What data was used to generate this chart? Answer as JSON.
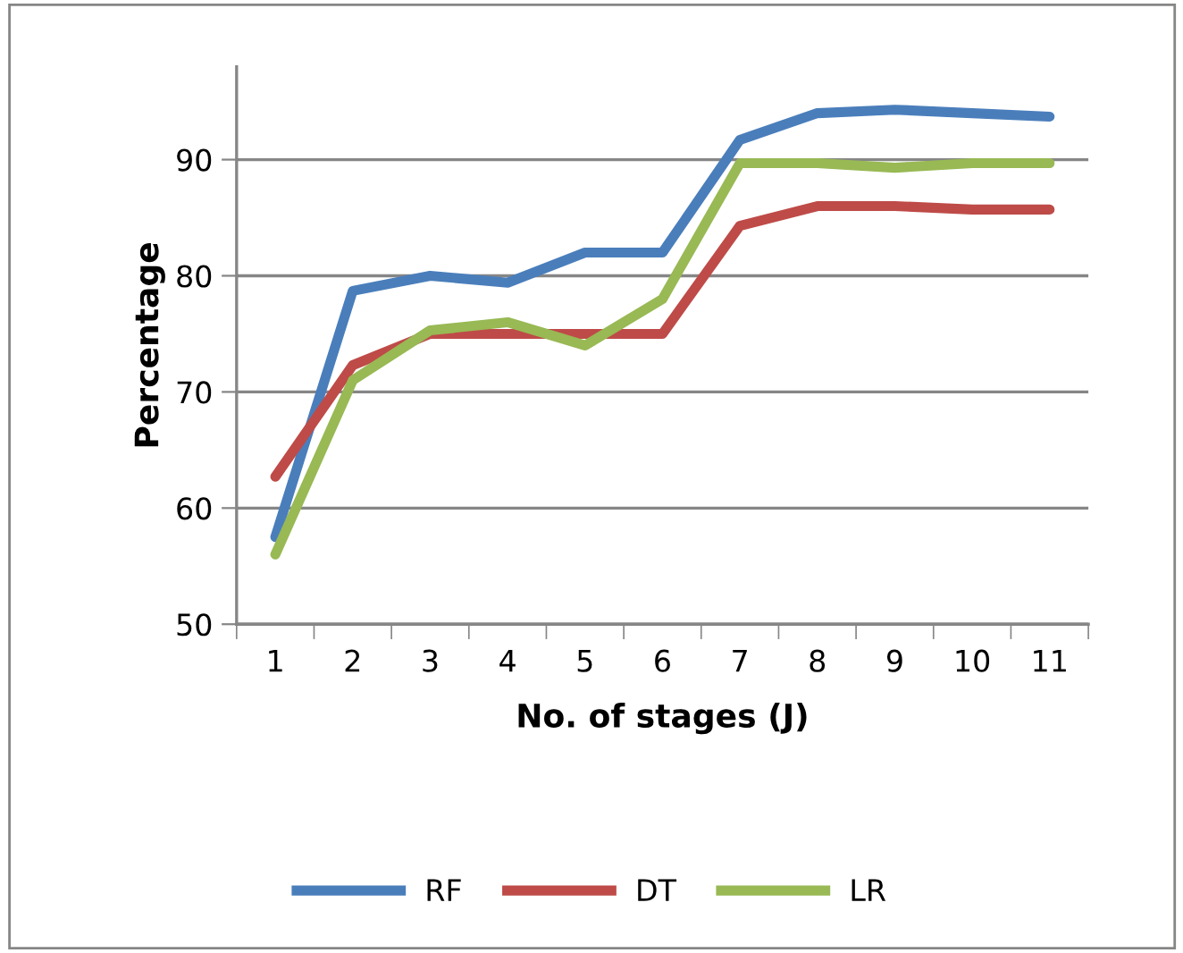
{
  "chart_data": {
    "type": "line",
    "xlabel": "No. of stages (J)",
    "ylabel": "Percentage",
    "categories": [
      "1",
      "2",
      "3",
      "4",
      "5",
      "6",
      "7",
      "8",
      "9",
      "10",
      "11"
    ],
    "series": [
      {
        "name": "RF",
        "color": "#4a7ebb",
        "values": [
          57.5,
          78.7,
          80,
          79.4,
          82,
          82,
          91.7,
          94,
          94.3,
          94,
          93.7
        ]
      },
      {
        "name": "DT",
        "color": "#be4b48",
        "values": [
          62.7,
          72.3,
          75,
          75,
          75,
          75,
          84.3,
          86,
          86,
          85.7,
          85.7
        ]
      },
      {
        "name": "LR",
        "color": "#98b954",
        "values": [
          56,
          71,
          75.3,
          76,
          74,
          78,
          89.7,
          89.7,
          89.3,
          89.7,
          89.7
        ]
      }
    ],
    "ylim": [
      50,
      98
    ],
    "yticks": [
      50,
      60,
      70,
      80,
      90
    ],
    "grid": "y",
    "legend": "bottom",
    "marker": "none",
    "line_style": "solid"
  }
}
